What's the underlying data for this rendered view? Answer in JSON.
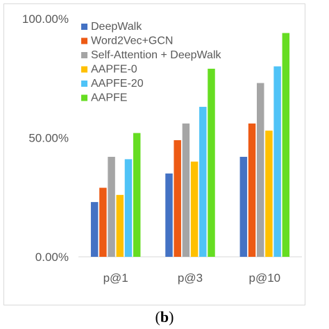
{
  "caption": {
    "prefix": "(",
    "letter": "b",
    "suffix": ")"
  },
  "chart_data": {
    "type": "bar",
    "categories": [
      "p@1",
      "p@3",
      "p@10"
    ],
    "ylim": [
      0,
      1
    ],
    "y_ticks": [
      "0.00%",
      "50.00%",
      "100.00%"
    ],
    "y_tick_values": [
      0,
      0.5,
      1
    ],
    "grid": false,
    "legend_position": "top-left",
    "series": [
      {
        "name": "DeepWalk",
        "color": "#4472c4",
        "values": [
          0.23,
          0.35,
          0.42
        ]
      },
      {
        "name": "Word2Vec+GCN",
        "color": "#ed5a14",
        "values": [
          0.29,
          0.49,
          0.56
        ]
      },
      {
        "name": "Self-Attention + DeepWalk",
        "color": "#a5a5a5",
        "values": [
          0.42,
          0.56,
          0.73
        ]
      },
      {
        "name": "AAPFE-0",
        "color": "#ffc000",
        "values": [
          0.26,
          0.4,
          0.53
        ]
      },
      {
        "name": "AAPFE-20",
        "color": "#4fc3f7",
        "values": [
          0.41,
          0.63,
          0.8
        ]
      },
      {
        "name": "AAPFE",
        "color": "#66dd22",
        "values": [
          0.52,
          0.79,
          0.94
        ]
      }
    ]
  }
}
